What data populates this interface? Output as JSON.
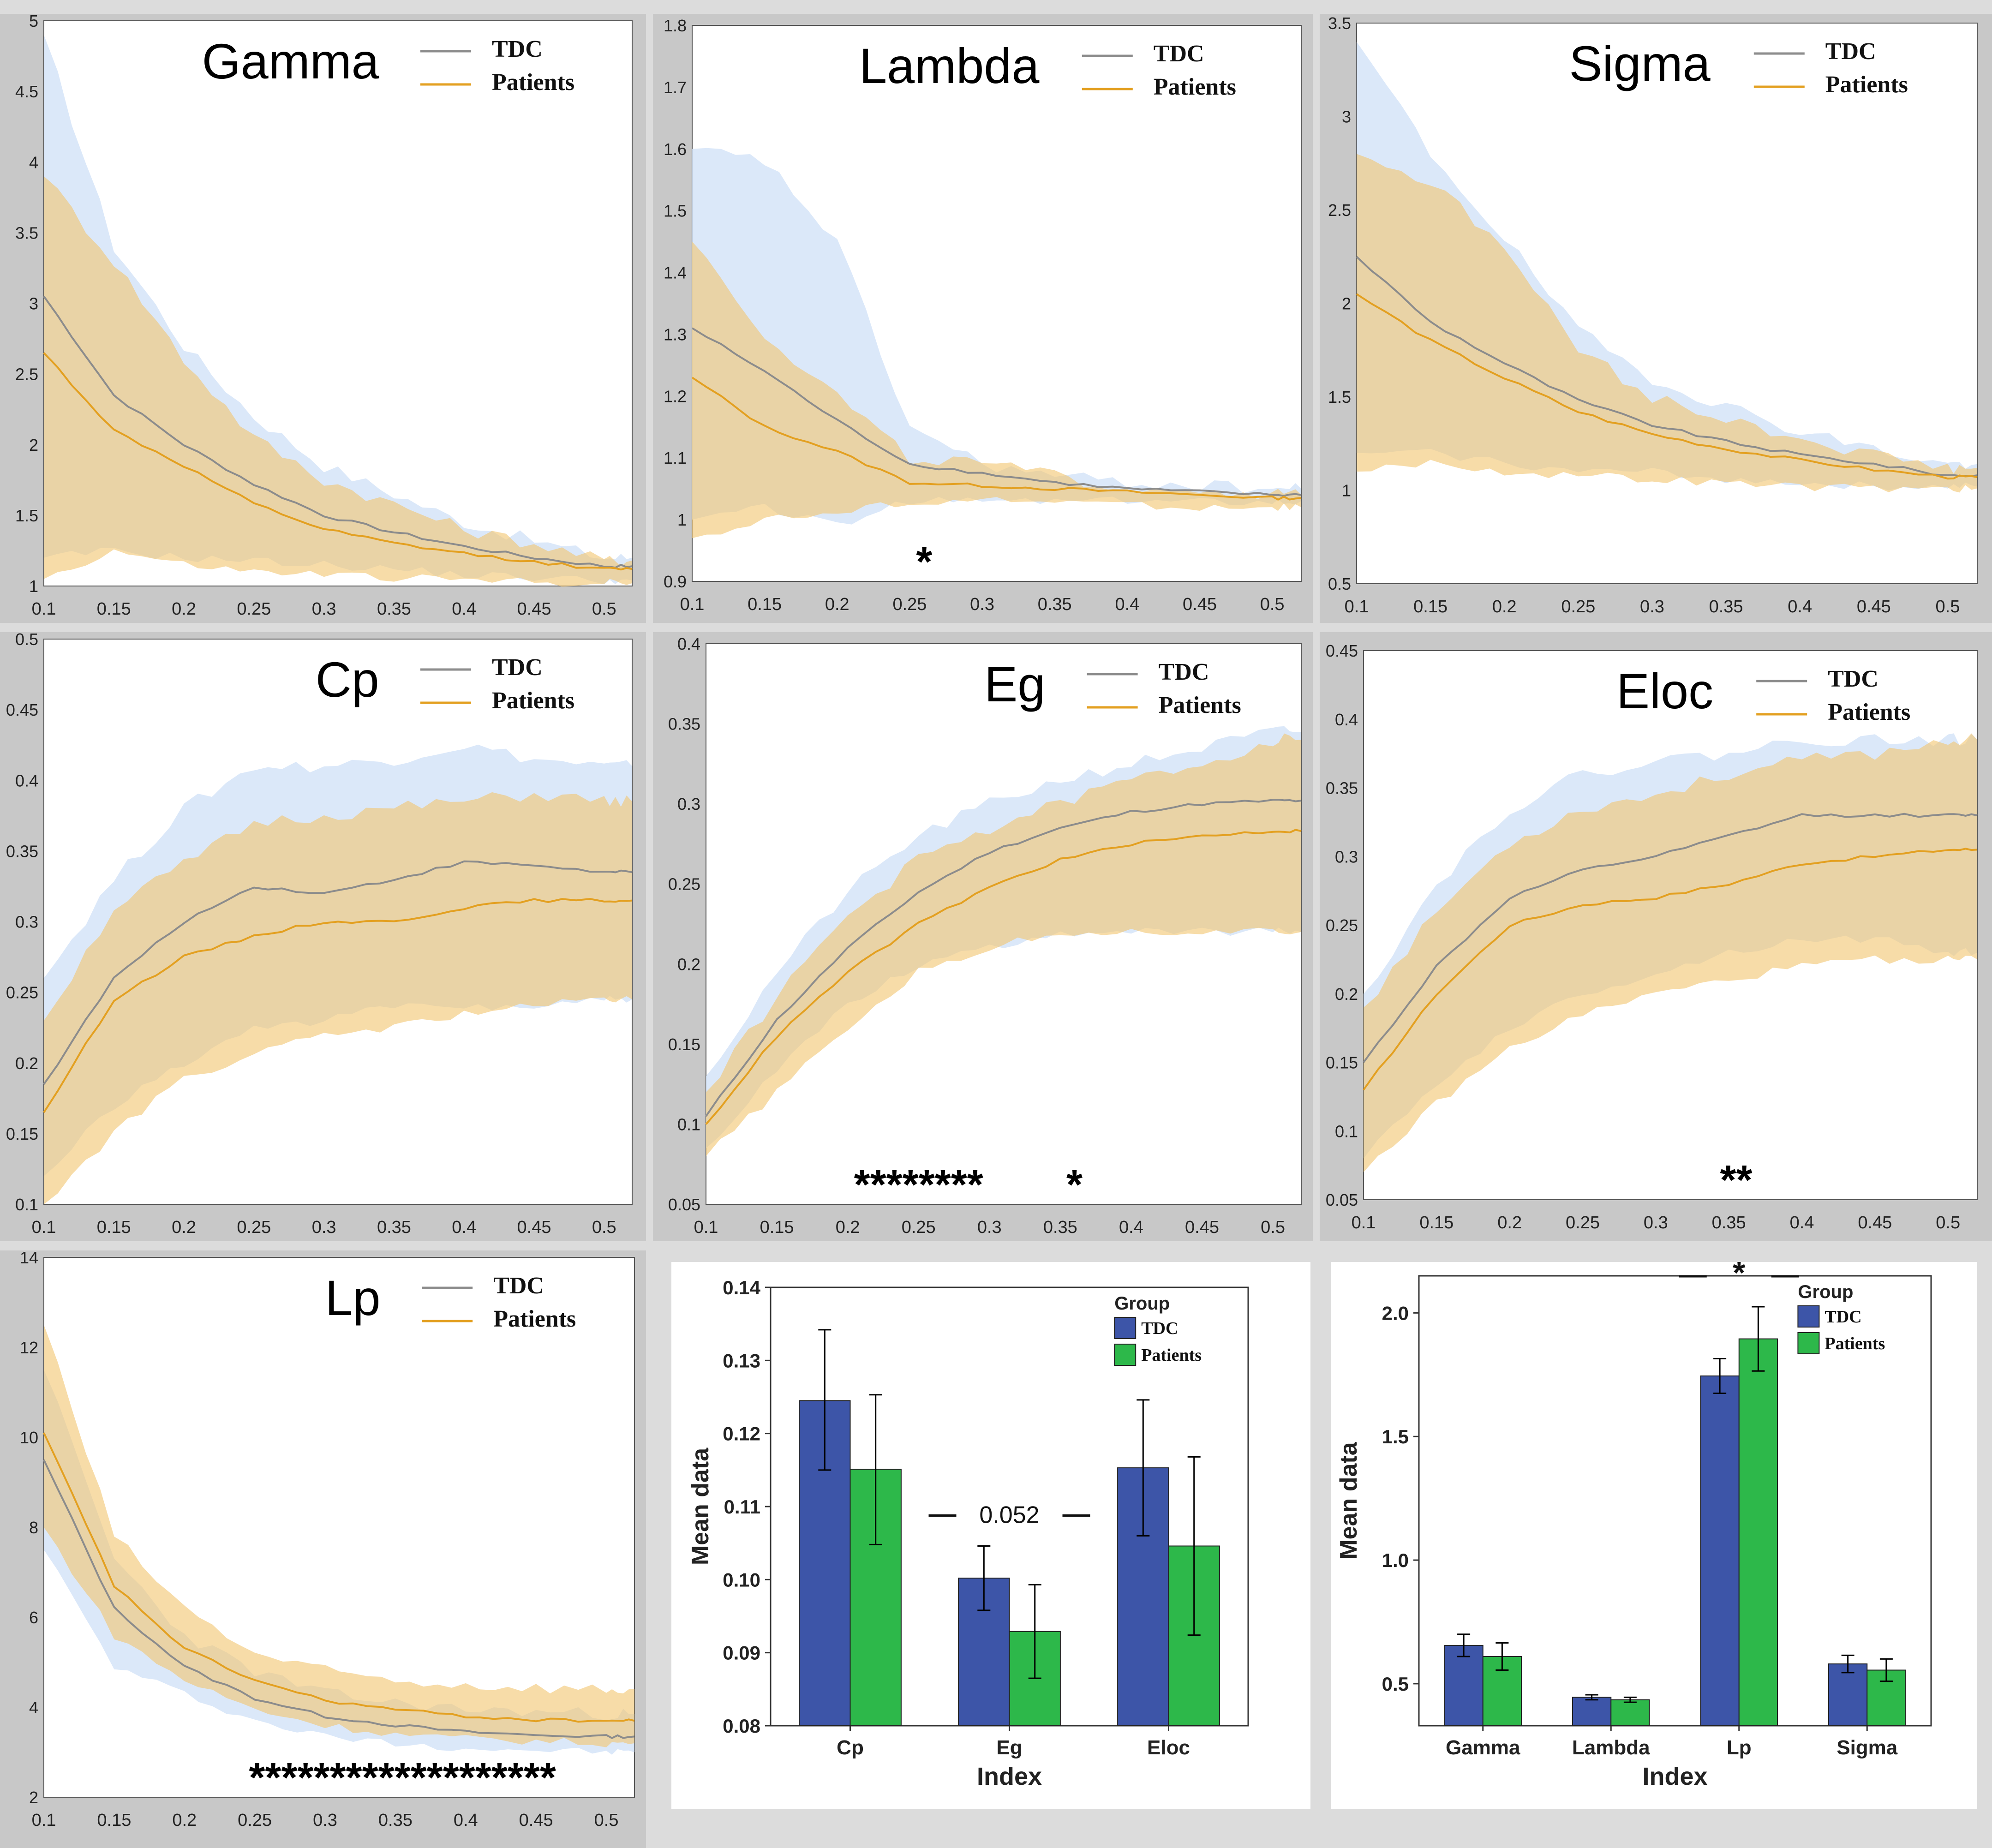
{
  "chart_data": [
    {
      "id": "gamma",
      "type": "line",
      "title": "Gamma",
      "legend": [
        "TDC",
        "Patients"
      ],
      "x": [
        0.1,
        0.15,
        0.2,
        0.25,
        0.3,
        0.35,
        0.4,
        0.45,
        0.5
      ],
      "series": [
        {
          "name": "TDC",
          "values": [
            3.05,
            2.35,
            2.0,
            1.72,
            1.5,
            1.38,
            1.28,
            1.2,
            1.14
          ],
          "upper": [
            4.9,
            3.4,
            2.7,
            2.2,
            1.85,
            1.65,
            1.45,
            1.32,
            1.2
          ],
          "lower": [
            1.2,
            1.25,
            1.2,
            1.18,
            1.15,
            1.12,
            1.08,
            1.06,
            1.04
          ]
        },
        {
          "name": "Patients",
          "values": [
            2.65,
            2.1,
            1.85,
            1.58,
            1.4,
            1.3,
            1.23,
            1.17,
            1.12
          ],
          "upper": [
            3.9,
            3.3,
            2.6,
            2.05,
            1.75,
            1.58,
            1.4,
            1.3,
            1.18
          ],
          "lower": [
            1.05,
            1.25,
            1.15,
            1.1,
            1.08,
            1.06,
            1.04,
            1.03,
            1.02
          ]
        }
      ],
      "xlim": [
        0.1,
        0.52
      ],
      "ylim": [
        1,
        5
      ],
      "xticks": [
        "0.1",
        "0.15",
        "0.2",
        "0.25",
        "0.3",
        "0.35",
        "0.4",
        "0.45",
        "0.5"
      ],
      "yticks": [
        "1",
        "1.5",
        "2",
        "2.5",
        "3",
        "3.5",
        "4",
        "4.5",
        "5"
      ],
      "significance": []
    },
    {
      "id": "lambda",
      "type": "line",
      "title": "Lambda",
      "legend": [
        "TDC",
        "Patients"
      ],
      "x": [
        0.1,
        0.15,
        0.2,
        0.25,
        0.3,
        0.35,
        0.4,
        0.45,
        0.5
      ],
      "series": [
        {
          "name": "TDC",
          "values": [
            1.31,
            1.24,
            1.16,
            1.09,
            1.075,
            1.06,
            1.05,
            1.045,
            1.04
          ],
          "upper": [
            1.6,
            1.58,
            1.45,
            1.15,
            1.09,
            1.07,
            1.06,
            1.055,
            1.05
          ],
          "lower": [
            1.0,
            1.02,
            0.99,
            1.03,
            1.03,
            1.03,
            1.03,
            1.03,
            1.03
          ]
        },
        {
          "name": "Patients",
          "values": [
            1.23,
            1.15,
            1.11,
            1.06,
            1.055,
            1.05,
            1.045,
            1.04,
            1.035
          ],
          "upper": [
            1.45,
            1.3,
            1.2,
            1.1,
            1.09,
            1.07,
            1.05,
            1.05,
            1.04
          ],
          "lower": [
            0.97,
            1.0,
            1.01,
            1.03,
            1.03,
            1.03,
            1.025,
            1.02,
            1.02
          ]
        }
      ],
      "xlim": [
        0.1,
        0.52
      ],
      "ylim": [
        0.9,
        1.8
      ],
      "xticks": [
        "0.1",
        "0.15",
        "0.2",
        "0.25",
        "0.3",
        "0.35",
        "0.4",
        "0.45",
        "0.5"
      ],
      "yticks": [
        "0.9",
        "1",
        "1.1",
        "1.2",
        "1.3",
        "1.4",
        "1.5",
        "1.6",
        "1.7",
        "1.8"
      ],
      "significance": [
        {
          "x": 0.26,
          "label": "*"
        }
      ]
    },
    {
      "id": "sigma",
      "type": "line",
      "title": "Sigma",
      "legend": [
        "TDC",
        "Patients"
      ],
      "x": [
        0.1,
        0.15,
        0.2,
        0.25,
        0.3,
        0.35,
        0.4,
        0.45,
        0.5
      ],
      "series": [
        {
          "name": "TDC",
          "values": [
            2.25,
            1.9,
            1.68,
            1.48,
            1.35,
            1.26,
            1.19,
            1.14,
            1.08
          ],
          "upper": [
            3.4,
            2.8,
            2.35,
            1.85,
            1.6,
            1.45,
            1.32,
            1.22,
            1.14
          ],
          "lower": [
            1.2,
            1.2,
            1.15,
            1.1,
            1.1,
            1.06,
            1.04,
            1.02,
            1.02
          ]
        },
        {
          "name": "Patients",
          "values": [
            2.05,
            1.8,
            1.6,
            1.42,
            1.3,
            1.22,
            1.16,
            1.11,
            1.07
          ],
          "upper": [
            2.8,
            2.65,
            2.3,
            1.75,
            1.5,
            1.38,
            1.28,
            1.19,
            1.12
          ],
          "lower": [
            1.1,
            1.15,
            1.1,
            1.08,
            1.06,
            1.04,
            1.02,
            1.01,
            1.01
          ]
        }
      ],
      "xlim": [
        0.1,
        0.52
      ],
      "ylim": [
        0.5,
        3.5
      ],
      "xticks": [
        "0.1",
        "0.15",
        "0.2",
        "0.25",
        "0.3",
        "0.35",
        "0.4",
        "0.45",
        "0.5"
      ],
      "yticks": [
        "0.5",
        "1",
        "1.5",
        "2",
        "2.5",
        "3",
        "3.5"
      ],
      "significance": []
    },
    {
      "id": "cp",
      "type": "line",
      "title": "Cp",
      "legend": [
        "TDC",
        "Patients"
      ],
      "x": [
        0.1,
        0.15,
        0.2,
        0.25,
        0.3,
        0.35,
        0.4,
        0.45,
        0.5
      ],
      "series": [
        {
          "name": "TDC",
          "values": [
            0.185,
            0.26,
            0.3,
            0.325,
            0.32,
            0.33,
            0.342,
            0.34,
            0.335
          ],
          "upper": [
            0.26,
            0.33,
            0.38,
            0.41,
            0.41,
            0.415,
            0.425,
            0.415,
            0.41
          ],
          "lower": [
            0.12,
            0.17,
            0.2,
            0.225,
            0.23,
            0.24,
            0.24,
            0.24,
            0.245
          ]
        },
        {
          "name": "Patients",
          "values": [
            0.165,
            0.245,
            0.275,
            0.29,
            0.3,
            0.3,
            0.31,
            0.315,
            0.315
          ],
          "upper": [
            0.23,
            0.31,
            0.34,
            0.37,
            0.375,
            0.38,
            0.385,
            0.39,
            0.385
          ],
          "lower": [
            0.1,
            0.15,
            0.19,
            0.205,
            0.22,
            0.225,
            0.235,
            0.24,
            0.245
          ]
        }
      ],
      "xlim": [
        0.1,
        0.52
      ],
      "ylim": [
        0.1,
        0.5
      ],
      "xticks": [
        "0.1",
        "0.15",
        "0.2",
        "0.25",
        "0.3",
        "0.35",
        "0.4",
        "0.45",
        "0.5"
      ],
      "yticks": [
        "0.1",
        "0.15",
        "0.2",
        "0.25",
        "0.3",
        "0.35",
        "0.4",
        "0.45",
        "0.5"
      ],
      "significance": []
    },
    {
      "id": "eg",
      "type": "line",
      "title": "Eg",
      "legend": [
        "TDC",
        "Patients"
      ],
      "x": [
        0.1,
        0.15,
        0.2,
        0.25,
        0.3,
        0.35,
        0.4,
        0.45,
        0.5
      ],
      "series": [
        {
          "name": "TDC",
          "values": [
            0.105,
            0.165,
            0.21,
            0.245,
            0.27,
            0.285,
            0.295,
            0.3,
            0.302
          ],
          "upper": [
            0.13,
            0.195,
            0.245,
            0.28,
            0.3,
            0.315,
            0.325,
            0.335,
            0.345
          ],
          "lower": [
            0.085,
            0.135,
            0.175,
            0.2,
            0.21,
            0.22,
            0.22,
            0.22,
            0.22
          ]
        },
        {
          "name": "Patients",
          "values": [
            0.1,
            0.155,
            0.195,
            0.225,
            0.248,
            0.265,
            0.275,
            0.28,
            0.283
          ],
          "upper": [
            0.12,
            0.18,
            0.23,
            0.265,
            0.285,
            0.3,
            0.315,
            0.325,
            0.34
          ],
          "lower": [
            0.08,
            0.12,
            0.16,
            0.195,
            0.21,
            0.22,
            0.22,
            0.22,
            0.22
          ]
        }
      ],
      "xlim": [
        0.1,
        0.52
      ],
      "ylim": [
        0.05,
        0.4
      ],
      "xticks": [
        "0.1",
        "0.15",
        "0.2",
        "0.25",
        "0.3",
        "0.35",
        "0.4",
        "0.45",
        "0.5"
      ],
      "yticks": [
        "0.05",
        "0.1",
        "0.15",
        "0.2",
        "0.25",
        "0.3",
        "0.35",
        "0.4"
      ],
      "significance": [
        {
          "x": 0.25,
          "label": "********"
        },
        {
          "x": 0.36,
          "label": "*"
        }
      ]
    },
    {
      "id": "eloc",
      "type": "line",
      "title": "Eloc",
      "legend": [
        "TDC",
        "Patients"
      ],
      "x": [
        0.1,
        0.15,
        0.2,
        0.25,
        0.3,
        0.35,
        0.4,
        0.45,
        0.5
      ],
      "series": [
        {
          "name": "TDC",
          "values": [
            0.15,
            0.22,
            0.27,
            0.29,
            0.3,
            0.315,
            0.33,
            0.33,
            0.33
          ],
          "upper": [
            0.2,
            0.28,
            0.335,
            0.36,
            0.37,
            0.375,
            0.385,
            0.385,
            0.385
          ],
          "lower": [
            0.08,
            0.135,
            0.175,
            0.2,
            0.215,
            0.23,
            0.24,
            0.24,
            0.23
          ]
        },
        {
          "name": "Patients",
          "values": [
            0.13,
            0.2,
            0.25,
            0.265,
            0.27,
            0.28,
            0.295,
            0.3,
            0.305
          ],
          "upper": [
            0.19,
            0.26,
            0.31,
            0.335,
            0.345,
            0.36,
            0.37,
            0.375,
            0.385
          ],
          "lower": [
            0.07,
            0.12,
            0.16,
            0.185,
            0.2,
            0.21,
            0.22,
            0.225,
            0.225
          ]
        }
      ],
      "xlim": [
        0.1,
        0.52
      ],
      "ylim": [
        0.05,
        0.45
      ],
      "xticks": [
        "0.1",
        "0.15",
        "0.2",
        "0.25",
        "0.3",
        "0.35",
        "0.4",
        "0.45",
        "0.5"
      ],
      "yticks": [
        "0.05",
        "0.1",
        "0.15",
        "0.2",
        "0.25",
        "0.3",
        "0.35",
        "0.4",
        "0.45"
      ],
      "significance": [
        {
          "x": 0.355,
          "label": "**"
        }
      ]
    },
    {
      "id": "lp",
      "type": "line",
      "title": "Lp",
      "legend": [
        "TDC",
        "Patients"
      ],
      "x": [
        0.1,
        0.15,
        0.2,
        0.25,
        0.3,
        0.35,
        0.4,
        0.45,
        0.5
      ],
      "series": [
        {
          "name": "TDC",
          "values": [
            9.5,
            6.2,
            4.9,
            4.2,
            3.8,
            3.6,
            3.45,
            3.38,
            3.35
          ],
          "upper": [
            11.5,
            7.3,
            5.6,
            4.8,
            4.3,
            4.1,
            3.95,
            3.9,
            3.85
          ],
          "lower": [
            7.5,
            4.9,
            4.3,
            3.7,
            3.35,
            3.2,
            3.1,
            3.05,
            3.0
          ]
        },
        {
          "name": "Patients",
          "values": [
            10.1,
            6.7,
            5.3,
            4.6,
            4.15,
            3.95,
            3.8,
            3.72,
            3.7
          ],
          "upper": [
            12.5,
            7.8,
            6.2,
            5.2,
            4.8,
            4.6,
            4.5,
            4.45,
            4.4
          ],
          "lower": [
            8.0,
            5.6,
            4.6,
            3.95,
            3.6,
            3.4,
            3.3,
            3.25,
            3.2
          ]
        }
      ],
      "xlim": [
        0.1,
        0.52
      ],
      "ylim": [
        2,
        14
      ],
      "xticks": [
        "0.1",
        "0.15",
        "0.2",
        "0.25",
        "0.3",
        "0.35",
        "0.4",
        "0.45",
        "0.5"
      ],
      "yticks": [
        "2",
        "4",
        "6",
        "8",
        "10",
        "12",
        "14"
      ],
      "significance": [
        {
          "x": 0.355,
          "label": "*******************"
        }
      ]
    },
    {
      "id": "bar-cp-eg-eloc",
      "type": "bar",
      "title": "",
      "categories": [
        "Cp",
        "Eg",
        "Eloc"
      ],
      "series": [
        {
          "name": "TDC",
          "values": [
            0.1245,
            0.1002,
            0.1153
          ],
          "err_low": [
            0.115,
            0.0958,
            0.106
          ],
          "err_high": [
            0.1342,
            0.1046,
            0.1246
          ]
        },
        {
          "name": "Patients",
          "values": [
            0.1151,
            0.0929,
            0.1046
          ],
          "err_low": [
            0.1048,
            0.0865,
            0.0924
          ],
          "err_high": [
            0.1253,
            0.0993,
            0.1168
          ]
        }
      ],
      "xlabel": "Index",
      "ylabel": "Mean data",
      "legend_title": "Group",
      "ylim": [
        0.08,
        0.14
      ],
      "yticks": [
        "0.08",
        "0.09",
        "0.10",
        "0.11",
        "0.12",
        "0.13",
        "0.14"
      ],
      "annotations": [
        {
          "category": "Eg",
          "label": "0.052"
        }
      ]
    },
    {
      "id": "bar-gamma-lambda-lp-sigma",
      "type": "bar",
      "title": "",
      "categories": [
        "Gamma",
        "Lambda",
        "Lp",
        "Sigma"
      ],
      "series": [
        {
          "name": "TDC",
          "values": [
            0.655,
            0.445,
            1.745,
            0.58
          ],
          "err_low": [
            0.61,
            0.435,
            1.675,
            0.545
          ],
          "err_high": [
            0.7,
            0.455,
            1.815,
            0.615
          ]
        },
        {
          "name": "Patients",
          "values": [
            0.61,
            0.435,
            1.895,
            0.555
          ],
          "err_low": [
            0.555,
            0.425,
            1.765,
            0.51
          ],
          "err_high": [
            0.665,
            0.445,
            2.025,
            0.6
          ]
        }
      ],
      "xlabel": "Index",
      "ylabel": "Mean data",
      "legend_title": "Group",
      "ylim": [
        0.33,
        2.15
      ],
      "yticks": [
        "0.5",
        "1.0",
        "1.5",
        "2.0"
      ],
      "annotations": [
        {
          "category": "Lp",
          "label": "*"
        }
      ]
    }
  ],
  "colors": {
    "tdc_line": "#8c8c8c",
    "tdc_band": "#cfe0f7",
    "patients_line": "#e3a021",
    "patients_band": "#f1c46e",
    "overlap_band": "#d8cdb0",
    "bar_tdc": "#3d55a8",
    "bar_patients": "#2db84a"
  }
}
